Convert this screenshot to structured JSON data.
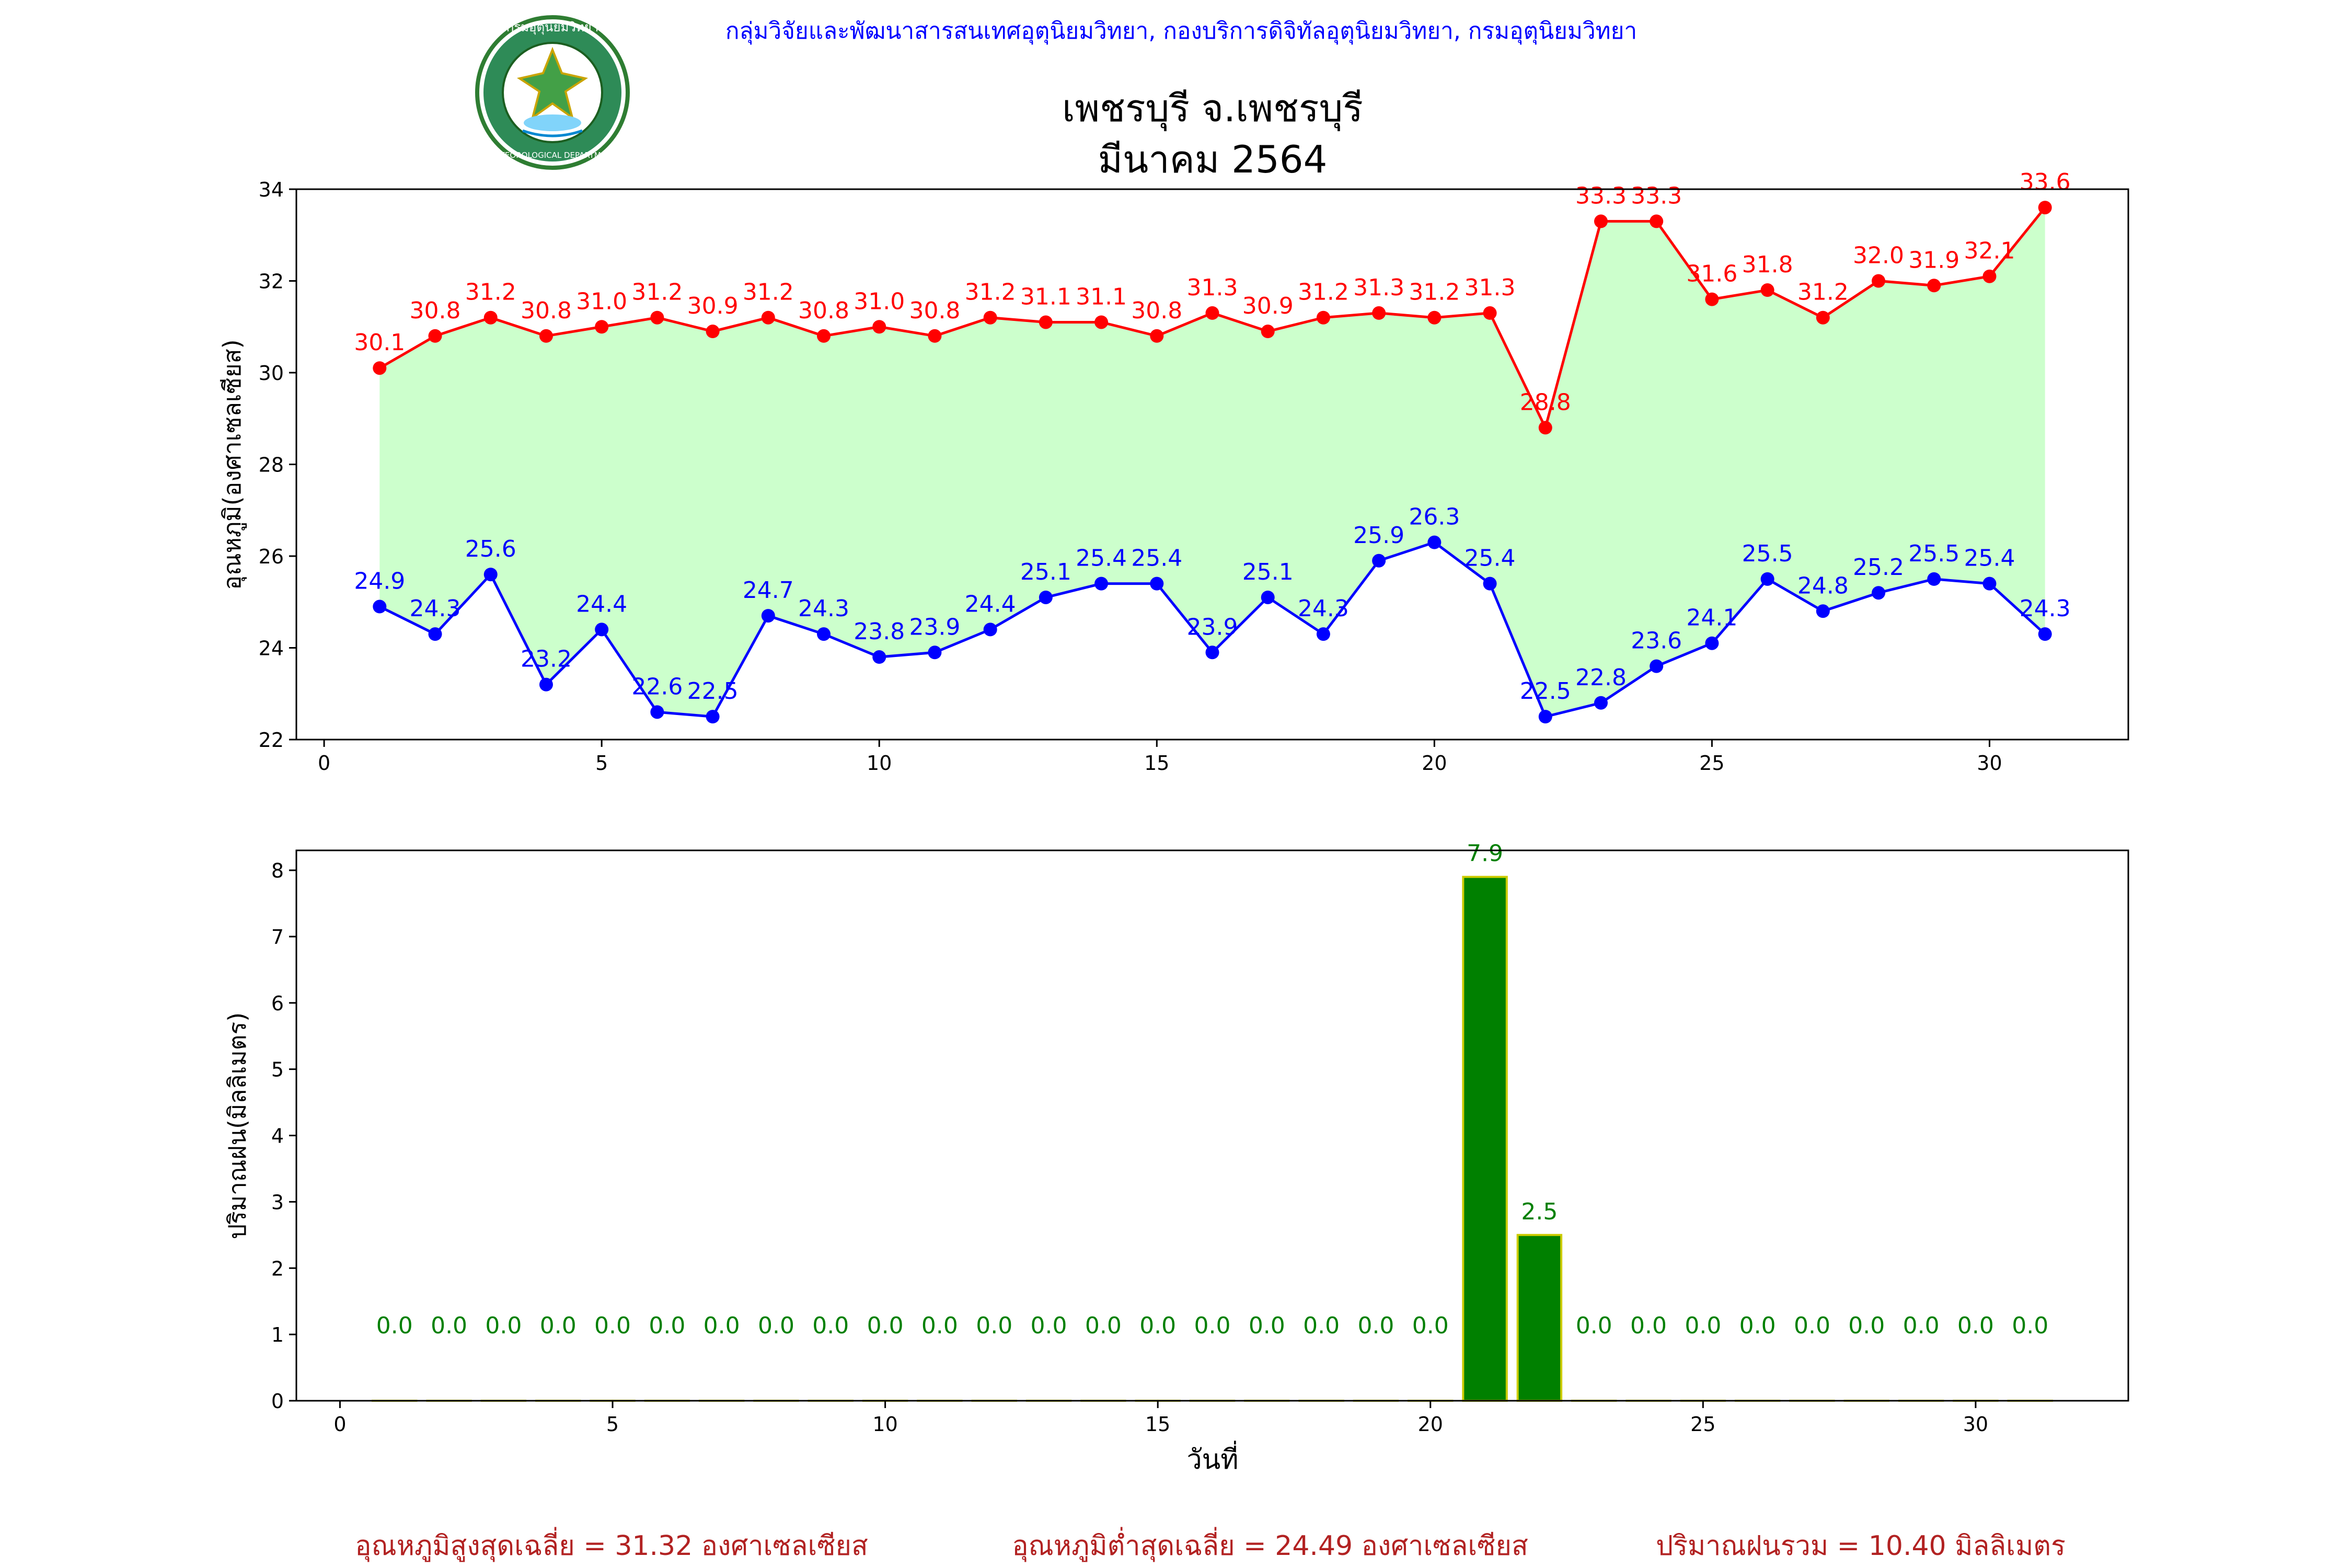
{
  "header": {
    "org_line": "กลุ่มวิจัยและพัฒนาสารสนเทศอุตุนิยมวิทยา, กองบริการดิจิทัลอุตุนิยมวิทยา, กรมอุตุนิยมวิทยา",
    "title_line1": "เพชรบุรี จ.เพชรบุรี",
    "title_line2": "มีนาคม 2564",
    "logo_icon": "meteorological-department-seal-icon",
    "logo_text": "กรมอุตุนิยมวิทยา",
    "logo_text_en": "METEOROLOGICAL DEPARTMENT"
  },
  "colors": {
    "max": "#ff0000",
    "min": "#0000ff",
    "fill": "#ccffcc",
    "bar": "#008000",
    "bar_edge": "#cccc00",
    "rain_label": "#008000",
    "footer": "#b22222",
    "header": "#0000ff"
  },
  "chart_data": [
    {
      "type": "line",
      "ylabel": "อุณหภูมิ(องศาเซลเซียส)",
      "xlabel": "",
      "ylim": [
        22,
        34
      ],
      "xlim": [
        -0.5,
        32.5
      ],
      "xticks": [
        0,
        5,
        10,
        15,
        20,
        25,
        30
      ],
      "yticks": [
        22,
        24,
        26,
        28,
        30,
        32,
        34
      ],
      "grid": false,
      "x": [
        1,
        2,
        3,
        4,
        5,
        6,
        7,
        8,
        9,
        10,
        11,
        12,
        13,
        14,
        15,
        16,
        17,
        18,
        19,
        20,
        21,
        22,
        23,
        24,
        25,
        26,
        27,
        28,
        29,
        30,
        31
      ],
      "series": [
        {
          "key": "max",
          "values": [
            30.1,
            30.8,
            31.2,
            30.8,
            31.0,
            31.2,
            30.9,
            31.2,
            30.8,
            31.0,
            30.8,
            31.2,
            31.1,
            31.1,
            30.8,
            31.3,
            30.9,
            31.2,
            31.3,
            31.2,
            31.3,
            28.8,
            33.3,
            33.3,
            31.6,
            31.8,
            31.2,
            32.0,
            31.9,
            32.1,
            33.6
          ]
        },
        {
          "key": "min",
          "values": [
            24.9,
            24.3,
            25.6,
            23.2,
            24.4,
            22.6,
            22.5,
            24.7,
            24.3,
            23.8,
            23.9,
            24.4,
            25.1,
            25.4,
            25.4,
            23.9,
            25.1,
            24.3,
            25.9,
            26.3,
            25.4,
            22.5,
            22.8,
            23.6,
            24.1,
            25.5,
            24.8,
            25.2,
            25.5,
            25.4,
            24.3
          ]
        }
      ],
      "fill_between": [
        "max",
        "min"
      ]
    },
    {
      "type": "bar",
      "ylabel": "ปริมาณฝน(มิลลิเมตร)",
      "xlabel": "วันที่",
      "ylim": [
        0,
        8.3
      ],
      "xlim": [
        -0.8,
        32.8
      ],
      "xticks": [
        0,
        5,
        10,
        15,
        20,
        25,
        30
      ],
      "yticks": [
        0,
        1,
        2,
        3,
        4,
        5,
        6,
        7,
        8
      ],
      "grid": false,
      "x": [
        1,
        2,
        3,
        4,
        5,
        6,
        7,
        8,
        9,
        10,
        11,
        12,
        13,
        14,
        15,
        16,
        17,
        18,
        19,
        20,
        21,
        22,
        23,
        24,
        25,
        26,
        27,
        28,
        29,
        30,
        31
      ],
      "values": [
        0.0,
        0.0,
        0.0,
        0.0,
        0.0,
        0.0,
        0.0,
        0.0,
        0.0,
        0.0,
        0.0,
        0.0,
        0.0,
        0.0,
        0.0,
        0.0,
        0.0,
        0.0,
        0.0,
        0.0,
        7.9,
        2.5,
        0.0,
        0.0,
        0.0,
        0.0,
        0.0,
        0.0,
        0.0,
        0.0,
        0.0
      ],
      "zero_label_level": 1
    }
  ],
  "footer": {
    "avg_max": "อุณหภูมิสูงสุดเฉลี่ย = 31.32 องศาเซลเซียส",
    "avg_min": "อุณหภูมิต่ำสุดเฉลี่ย = 24.49 องศาเซลเซียส",
    "total_rain": "ปริมาณฝนรวม = 10.40 มิลลิเมตร"
  }
}
